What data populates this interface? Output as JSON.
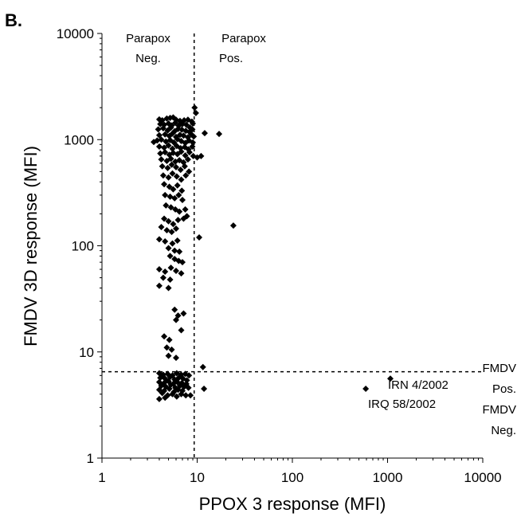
{
  "chart_data": {
    "type": "scatter",
    "panel_label": "B.",
    "xlabel": "PPOX 3 response (MFI)",
    "ylabel": "FMDV 3D response (MFI)",
    "x_scale": "log",
    "y_scale": "log",
    "xlim": [
      1,
      10000
    ],
    "ylim": [
      1,
      10000
    ],
    "x_ticks": [
      "1",
      "10",
      "100",
      "1000",
      "10000"
    ],
    "y_ticks": [
      "1",
      "10",
      "100",
      "1000",
      "10000"
    ],
    "grid": false,
    "cutoff_x": 9.3,
    "cutoff_y": 6.5,
    "region_labels": {
      "parapox_neg": [
        "Parapox",
        "Neg."
      ],
      "parapox_pos": [
        "Parapox",
        "Pos."
      ],
      "fmdv_pos": [
        "FMDV",
        "Pos."
      ],
      "fmdv_neg": [
        "FMDV",
        "Neg."
      ]
    },
    "annotations": [
      {
        "text": "IRN 4/2002",
        "x": 1070,
        "y": 5.6
      },
      {
        "text": "IRQ 58/2002",
        "x": 590,
        "y": 4.5
      }
    ],
    "points": [
      [
        4.0,
        1550
      ],
      [
        4.3,
        1520
      ],
      [
        4.8,
        1580
      ],
      [
        5.2,
        1600
      ],
      [
        5.6,
        1620
      ],
      [
        6.0,
        1540
      ],
      [
        6.6,
        1500
      ],
      [
        7.3,
        1520
      ],
      [
        8.0,
        1540
      ],
      [
        8.8,
        1480
      ],
      [
        4.1,
        1400
      ],
      [
        4.5,
        1380
      ],
      [
        5.0,
        1420
      ],
      [
        5.4,
        1360
      ],
      [
        5.9,
        1440
      ],
      [
        6.4,
        1350
      ],
      [
        7.0,
        1400
      ],
      [
        7.7,
        1380
      ],
      [
        8.4,
        1300
      ],
      [
        9.0,
        1420
      ],
      [
        3.9,
        1250
      ],
      [
        4.4,
        1280
      ],
      [
        4.9,
        1220
      ],
      [
        5.3,
        1300
      ],
      [
        5.8,
        1200
      ],
      [
        6.3,
        1260
      ],
      [
        6.9,
        1240
      ],
      [
        7.6,
        1210
      ],
      [
        8.3,
        1180
      ],
      [
        8.9,
        1250
      ],
      [
        4.0,
        1100
      ],
      [
        4.6,
        1120
      ],
      [
        5.1,
        1080
      ],
      [
        5.5,
        1140
      ],
      [
        6.0,
        1060
      ],
      [
        6.6,
        1110
      ],
      [
        7.2,
        1090
      ],
      [
        8.0,
        1050
      ],
      [
        8.7,
        1120
      ],
      [
        9.2,
        1070
      ],
      [
        3.5,
        950
      ],
      [
        3.8,
        980
      ],
      [
        4.2,
        1000
      ],
      [
        4.7,
        960
      ],
      [
        5.2,
        990
      ],
      [
        5.7,
        940
      ],
      [
        6.2,
        1010
      ],
      [
        6.8,
        970
      ],
      [
        7.5,
        930
      ],
      [
        8.2,
        980
      ],
      [
        9.0,
        940
      ],
      [
        4.0,
        860
      ],
      [
        4.5,
        840
      ],
      [
        5.0,
        880
      ],
      [
        5.5,
        820
      ],
      [
        6.1,
        870
      ],
      [
        6.7,
        830
      ],
      [
        7.4,
        850
      ],
      [
        8.1,
        810
      ],
      [
        8.9,
        860
      ],
      [
        4.1,
        740
      ],
      [
        4.6,
        760
      ],
      [
        5.1,
        720
      ],
      [
        5.6,
        750
      ],
      [
        6.2,
        730
      ],
      [
        6.8,
        770
      ],
      [
        7.5,
        710
      ],
      [
        8.3,
        760
      ],
      [
        9.1,
        700
      ],
      [
        10.0,
        680
      ],
      [
        4.2,
        650
      ],
      [
        4.8,
        630
      ],
      [
        5.3,
        660
      ],
      [
        5.9,
        620
      ],
      [
        6.5,
        640
      ],
      [
        7.2,
        610
      ],
      [
        8.0,
        650
      ],
      [
        4.3,
        560
      ],
      [
        4.9,
        540
      ],
      [
        5.4,
        580
      ],
      [
        6.0,
        550
      ],
      [
        6.7,
        520
      ],
      [
        7.4,
        560
      ],
      [
        8.2,
        500
      ],
      [
        4.4,
        460
      ],
      [
        5.0,
        440
      ],
      [
        5.5,
        480
      ],
      [
        6.1,
        450
      ],
      [
        6.8,
        420
      ],
      [
        7.6,
        460
      ],
      [
        4.5,
        380
      ],
      [
        5.1,
        360
      ],
      [
        5.6,
        340
      ],
      [
        6.2,
        370
      ],
      [
        6.9,
        330
      ],
      [
        4.6,
        300
      ],
      [
        5.2,
        290
      ],
      [
        5.8,
        280
      ],
      [
        6.4,
        300
      ],
      [
        7.0,
        270
      ],
      [
        4.7,
        240
      ],
      [
        5.3,
        230
      ],
      [
        5.9,
        220
      ],
      [
        6.5,
        210
      ],
      [
        7.5,
        220
      ],
      [
        4.5,
        180
      ],
      [
        5.0,
        170
      ],
      [
        5.6,
        160
      ],
      [
        6.3,
        175
      ],
      [
        7.2,
        180
      ],
      [
        7.8,
        190
      ],
      [
        4.2,
        150
      ],
      [
        4.8,
        140
      ],
      [
        5.4,
        135
      ],
      [
        6.0,
        145
      ],
      [
        4.0,
        115
      ],
      [
        4.6,
        110
      ],
      [
        5.5,
        105
      ],
      [
        6.2,
        112
      ],
      [
        5.0,
        95
      ],
      [
        5.8,
        90
      ],
      [
        6.5,
        88
      ],
      [
        5.2,
        80
      ],
      [
        5.8,
        75
      ],
      [
        6.4,
        72
      ],
      [
        7.0,
        70
      ],
      [
        4.0,
        60
      ],
      [
        4.6,
        57
      ],
      [
        5.3,
        62
      ],
      [
        6.0,
        58
      ],
      [
        6.8,
        55
      ],
      [
        4.4,
        50
      ],
      [
        5.2,
        48
      ],
      [
        4.0,
        42
      ],
      [
        5.0,
        40
      ],
      [
        5.8,
        25
      ],
      [
        6.3,
        22
      ],
      [
        7.2,
        23
      ],
      [
        6.0,
        20
      ],
      [
        6.8,
        16
      ],
      [
        4.5,
        14
      ],
      [
        5.1,
        13
      ],
      [
        4.8,
        11
      ],
      [
        5.4,
        10.5
      ],
      [
        5.0,
        9.2
      ],
      [
        6.0,
        8.8
      ],
      [
        4.0,
        6.3
      ],
      [
        4.4,
        6.1
      ],
      [
        4.9,
        6.2
      ],
      [
        5.5,
        6.0
      ],
      [
        6.1,
        6.3
      ],
      [
        6.8,
        6.1
      ],
      [
        7.5,
        6.2
      ],
      [
        8.2,
        6.0
      ],
      [
        4.1,
        5.7
      ],
      [
        4.6,
        5.6
      ],
      [
        5.2,
        5.8
      ],
      [
        5.8,
        5.5
      ],
      [
        6.4,
        5.7
      ],
      [
        7.1,
        5.6
      ],
      [
        7.8,
        5.4
      ],
      [
        4.0,
        5.2
      ],
      [
        4.5,
        5.1
      ],
      [
        5.0,
        5.3
      ],
      [
        5.6,
        5.0
      ],
      [
        6.2,
        5.2
      ],
      [
        6.9,
        5.1
      ],
      [
        7.7,
        5.0
      ],
      [
        4.2,
        4.8
      ],
      [
        4.7,
        4.7
      ],
      [
        5.3,
        4.9
      ],
      [
        5.9,
        4.6
      ],
      [
        6.6,
        4.8
      ],
      [
        7.3,
        4.7
      ],
      [
        8.1,
        4.6
      ],
      [
        4.0,
        4.4
      ],
      [
        4.5,
        4.3
      ],
      [
        5.1,
        4.5
      ],
      [
        5.7,
        4.2
      ],
      [
        6.3,
        4.4
      ],
      [
        7.0,
        4.3
      ],
      [
        4.3,
        4.1
      ],
      [
        4.9,
        3.9
      ],
      [
        5.5,
        4.0
      ],
      [
        6.1,
        3.8
      ],
      [
        6.8,
        4.0
      ],
      [
        7.6,
        3.9
      ],
      [
        8.5,
        3.9
      ],
      [
        4.0,
        3.6
      ],
      [
        4.6,
        3.7
      ],
      [
        9.4,
        2000
      ],
      [
        9.7,
        1780
      ],
      [
        12.0,
        1150
      ],
      [
        17.0,
        1130
      ],
      [
        11.0,
        700
      ],
      [
        10.5,
        120
      ],
      [
        24.0,
        155
      ],
      [
        11.5,
        7.2
      ],
      [
        11.8,
        4.5
      ],
      [
        1070,
        5.6
      ],
      [
        590,
        4.5
      ]
    ]
  }
}
